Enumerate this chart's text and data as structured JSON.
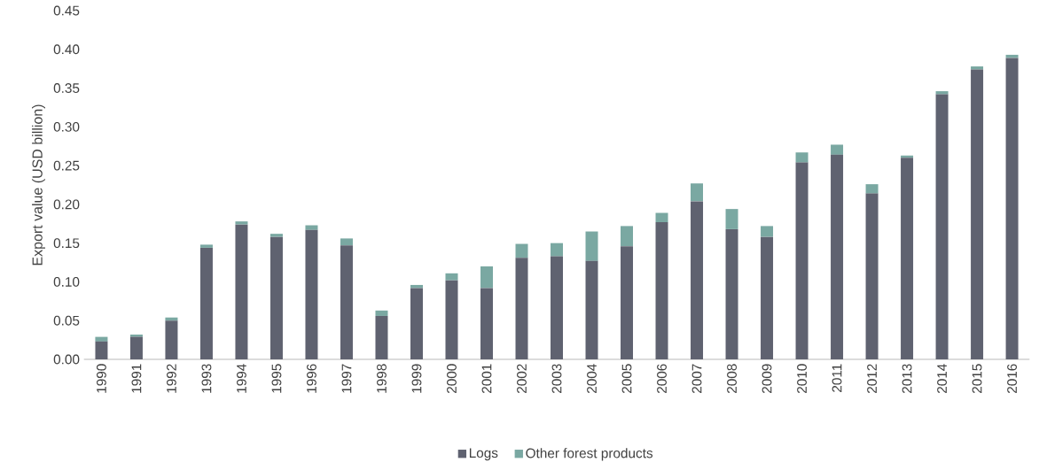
{
  "chart_data": {
    "type": "bar",
    "stacked": true,
    "ylabel": "Export value (USD billion)",
    "categories": [
      "1990",
      "1991",
      "1992",
      "1993",
      "1994",
      "1995",
      "1996",
      "1997",
      "1998",
      "1999",
      "2000",
      "2001",
      "2002",
      "2003",
      "2004",
      "2005",
      "2006",
      "2007",
      "2008",
      "2009",
      "2010",
      "2011",
      "2012",
      "2013",
      "2014",
      "2015",
      "2016"
    ],
    "series": [
      {
        "name": "Logs",
        "color": "#5f6270",
        "values": [
          0.023,
          0.029,
          0.05,
          0.144,
          0.174,
          0.158,
          0.167,
          0.147,
          0.056,
          0.092,
          0.102,
          0.092,
          0.131,
          0.133,
          0.127,
          0.146,
          0.177,
          0.204,
          0.168,
          0.158,
          0.254,
          0.264,
          0.214,
          0.26,
          0.342,
          0.374,
          0.389
        ]
      },
      {
        "name": "Other forest products",
        "color": "#7aa8a2",
        "values": [
          0.006,
          0.003,
          0.004,
          0.004,
          0.004,
          0.004,
          0.006,
          0.009,
          0.007,
          0.004,
          0.009,
          0.028,
          0.018,
          0.017,
          0.038,
          0.026,
          0.012,
          0.023,
          0.026,
          0.014,
          0.013,
          0.013,
          0.012,
          0.003,
          0.004,
          0.004,
          0.004
        ]
      }
    ],
    "ylim": [
      0,
      0.45
    ],
    "yticks": [
      {
        "value": 0,
        "label": "0.00"
      },
      {
        "value": 0.05,
        "label": "0.05"
      },
      {
        "value": 0.1,
        "label": "0.10"
      },
      {
        "value": 0.15,
        "label": "0.15"
      },
      {
        "value": 0.2,
        "label": "0.20"
      },
      {
        "value": 0.25,
        "label": "0.25"
      },
      {
        "value": 0.3,
        "label": "0.30"
      },
      {
        "value": 0.35,
        "label": "0.35"
      },
      {
        "value": 0.4,
        "label": "0.40"
      },
      {
        "value": 0.45,
        "label": "0.45"
      }
    ],
    "legend": "bottom"
  }
}
